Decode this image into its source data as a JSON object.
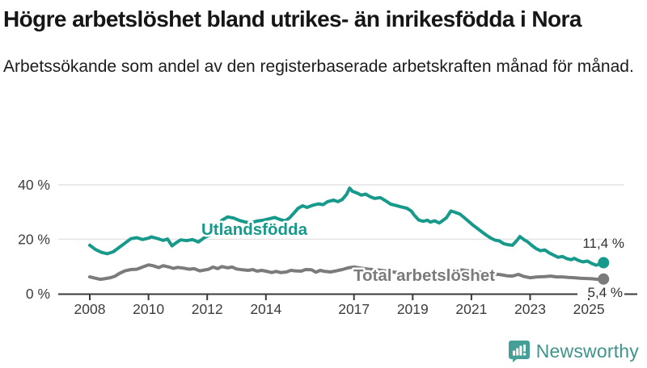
{
  "title": "Högre arbetslöshet bland utrikes- än inrikesfödda i Nora",
  "subtitle": "Arbetssökande som andel av den registerbaserade arbetskraften månad för månad.",
  "footer": {
    "brand": "Newsworthy",
    "brand_color": "#3e948a",
    "logo_icon": "bar-chart-speech-bubble-icon"
  },
  "chart_data": {
    "type": "line",
    "title": "Högre arbetslöshet bland utrikes- än inrikesfödda i Nora",
    "subtitle": "Arbetssökande som andel av den registerbaserade arbetskraften månad för månad.",
    "xlabel": "",
    "ylabel": "",
    "x_range": [
      2008,
      2025.6
    ],
    "ylim": [
      0,
      44
    ],
    "grid": "horizontal-only",
    "grid_color": "#e4e4e4",
    "axis_color": "#3a3a3a",
    "tick_label_color": "#3d3d3d",
    "value_label_color": "#2e2e2e",
    "legend_position": "inline-labels",
    "y_ticks": [
      {
        "value": 0,
        "label": "0 %"
      },
      {
        "value": 20,
        "label": "20 %"
      },
      {
        "value": 40,
        "label": "40 %"
      }
    ],
    "x_ticks": [
      {
        "value": 2008,
        "label": "2008"
      },
      {
        "value": 2010,
        "label": "2010"
      },
      {
        "value": 2012,
        "label": "2012"
      },
      {
        "value": 2014,
        "label": "2014"
      },
      {
        "value": 2017,
        "label": "2017"
      },
      {
        "value": 2019,
        "label": "2019"
      },
      {
        "value": 2021,
        "label": "2021"
      },
      {
        "value": 2023,
        "label": "2023"
      },
      {
        "value": 2025,
        "label": "2025"
      }
    ],
    "series": [
      {
        "name": "Utlandsfödda",
        "slug": "utlandsfodda",
        "color": "#17998b",
        "end_label": "11,4 %",
        "end_value": 11.4,
        "points": [
          [
            2008.0,
            17.8
          ],
          [
            2008.2,
            16.2
          ],
          [
            2008.4,
            15.2
          ],
          [
            2008.6,
            14.7
          ],
          [
            2008.8,
            15.4
          ],
          [
            2009.0,
            17.0
          ],
          [
            2009.2,
            18.6
          ],
          [
            2009.4,
            20.2
          ],
          [
            2009.6,
            20.6
          ],
          [
            2009.8,
            19.9
          ],
          [
            2010.0,
            20.4
          ],
          [
            2010.1,
            20.9
          ],
          [
            2010.3,
            20.3
          ],
          [
            2010.5,
            19.6
          ],
          [
            2010.65,
            20.1
          ],
          [
            2010.8,
            17.6
          ],
          [
            2010.95,
            18.8
          ],
          [
            2011.1,
            19.8
          ],
          [
            2011.3,
            19.5
          ],
          [
            2011.5,
            19.9
          ],
          [
            2011.7,
            19.0
          ],
          [
            2011.9,
            20.6
          ],
          [
            2012.1,
            21.6
          ],
          [
            2012.3,
            24.5
          ],
          [
            2012.5,
            27.0
          ],
          [
            2012.7,
            28.2
          ],
          [
            2012.9,
            27.8
          ],
          [
            2013.1,
            26.9
          ],
          [
            2013.3,
            26.3
          ],
          [
            2013.5,
            26.1
          ],
          [
            2013.7,
            26.7
          ],
          [
            2013.9,
            27.0
          ],
          [
            2014.1,
            27.5
          ],
          [
            2014.3,
            28.0
          ],
          [
            2014.5,
            27.2
          ],
          [
            2014.65,
            26.8
          ],
          [
            2014.8,
            27.8
          ],
          [
            2014.95,
            29.6
          ],
          [
            2015.1,
            31.4
          ],
          [
            2015.25,
            32.3
          ],
          [
            2015.4,
            31.7
          ],
          [
            2015.6,
            32.5
          ],
          [
            2015.8,
            33.0
          ],
          [
            2015.95,
            32.7
          ],
          [
            2016.1,
            33.8
          ],
          [
            2016.3,
            34.4
          ],
          [
            2016.45,
            33.8
          ],
          [
            2016.6,
            34.6
          ],
          [
            2016.75,
            36.5
          ],
          [
            2016.85,
            38.8
          ],
          [
            2016.95,
            37.6
          ],
          [
            2017.1,
            37.0
          ],
          [
            2017.25,
            36.2
          ],
          [
            2017.4,
            36.6
          ],
          [
            2017.55,
            35.6
          ],
          [
            2017.7,
            35.0
          ],
          [
            2017.9,
            35.3
          ],
          [
            2018.1,
            34.0
          ],
          [
            2018.25,
            32.9
          ],
          [
            2018.4,
            32.5
          ],
          [
            2018.6,
            31.9
          ],
          [
            2018.8,
            31.4
          ],
          [
            2018.95,
            30.4
          ],
          [
            2019.05,
            28.9
          ],
          [
            2019.2,
            27.1
          ],
          [
            2019.35,
            26.6
          ],
          [
            2019.5,
            27.0
          ],
          [
            2019.6,
            26.3
          ],
          [
            2019.75,
            26.8
          ],
          [
            2019.9,
            26.0
          ],
          [
            2020.0,
            26.7
          ],
          [
            2020.15,
            27.9
          ],
          [
            2020.3,
            30.4
          ],
          [
            2020.45,
            29.9
          ],
          [
            2020.6,
            29.3
          ],
          [
            2020.75,
            28.0
          ],
          [
            2020.9,
            26.6
          ],
          [
            2021.05,
            25.2
          ],
          [
            2021.2,
            24.0
          ],
          [
            2021.35,
            22.8
          ],
          [
            2021.5,
            21.6
          ],
          [
            2021.65,
            20.5
          ],
          [
            2021.8,
            19.7
          ],
          [
            2021.95,
            19.4
          ],
          [
            2022.1,
            18.4
          ],
          [
            2022.25,
            18.0
          ],
          [
            2022.4,
            17.8
          ],
          [
            2022.55,
            19.6
          ],
          [
            2022.65,
            21.0
          ],
          [
            2022.8,
            19.8
          ],
          [
            2022.9,
            19.2
          ],
          [
            2023.05,
            17.8
          ],
          [
            2023.2,
            16.6
          ],
          [
            2023.35,
            15.8
          ],
          [
            2023.5,
            16.1
          ],
          [
            2023.65,
            15.0
          ],
          [
            2023.8,
            14.2
          ],
          [
            2023.95,
            13.4
          ],
          [
            2024.1,
            13.7
          ],
          [
            2024.25,
            12.9
          ],
          [
            2024.4,
            12.5
          ],
          [
            2024.5,
            13.0
          ],
          [
            2024.65,
            12.2
          ],
          [
            2024.8,
            11.7
          ],
          [
            2024.95,
            12.0
          ],
          [
            2025.1,
            11.1
          ],
          [
            2025.25,
            10.5
          ],
          [
            2025.4,
            11.0
          ],
          [
            2025.5,
            11.4
          ]
        ]
      },
      {
        "name": "Total arbetslöshet",
        "slug": "total-arbetsloshet",
        "color": "#7b7b7b",
        "end_label": "5,4 %",
        "end_value": 5.4,
        "points": [
          [
            2008.0,
            6.2
          ],
          [
            2008.2,
            5.7
          ],
          [
            2008.35,
            5.3
          ],
          [
            2008.5,
            5.5
          ],
          [
            2008.7,
            5.9
          ],
          [
            2008.85,
            6.4
          ],
          [
            2009.0,
            7.4
          ],
          [
            2009.2,
            8.4
          ],
          [
            2009.4,
            8.9
          ],
          [
            2009.6,
            9.0
          ],
          [
            2009.8,
            9.8
          ],
          [
            2010.0,
            10.6
          ],
          [
            2010.15,
            10.3
          ],
          [
            2010.35,
            9.6
          ],
          [
            2010.5,
            10.3
          ],
          [
            2010.7,
            9.8
          ],
          [
            2010.85,
            9.3
          ],
          [
            2011.0,
            9.7
          ],
          [
            2011.2,
            9.4
          ],
          [
            2011.4,
            9.0
          ],
          [
            2011.55,
            9.2
          ],
          [
            2011.75,
            8.4
          ],
          [
            2011.9,
            8.7
          ],
          [
            2012.05,
            9.0
          ],
          [
            2012.2,
            9.8
          ],
          [
            2012.35,
            9.2
          ],
          [
            2012.5,
            10.0
          ],
          [
            2012.7,
            9.5
          ],
          [
            2012.85,
            9.8
          ],
          [
            2013.0,
            9.1
          ],
          [
            2013.2,
            8.8
          ],
          [
            2013.4,
            8.6
          ],
          [
            2013.55,
            8.9
          ],
          [
            2013.7,
            8.3
          ],
          [
            2013.85,
            8.6
          ],
          [
            2014.0,
            8.3
          ],
          [
            2014.2,
            7.8
          ],
          [
            2014.35,
            8.2
          ],
          [
            2014.5,
            7.8
          ],
          [
            2014.7,
            8.0
          ],
          [
            2014.85,
            8.6
          ],
          [
            2015.0,
            8.4
          ],
          [
            2015.2,
            8.3
          ],
          [
            2015.35,
            8.9
          ],
          [
            2015.55,
            8.8
          ],
          [
            2015.7,
            7.9
          ],
          [
            2015.85,
            8.6
          ],
          [
            2016.0,
            8.2
          ],
          [
            2016.2,
            8.0
          ],
          [
            2016.4,
            8.4
          ],
          [
            2016.6,
            8.9
          ],
          [
            2016.8,
            9.5
          ],
          [
            2017.0,
            9.8
          ],
          [
            2017.25,
            9.4
          ],
          [
            2017.5,
            9.0
          ],
          [
            2017.75,
            8.8
          ],
          [
            2018.0,
            8.5
          ],
          [
            2018.25,
            8.1
          ],
          [
            2018.5,
            7.8
          ],
          [
            2018.75,
            7.5
          ],
          [
            2019.0,
            7.3
          ],
          [
            2019.25,
            7.1
          ],
          [
            2019.5,
            7.0
          ],
          [
            2019.75,
            7.2
          ],
          [
            2020.0,
            7.6
          ],
          [
            2020.25,
            8.5
          ],
          [
            2020.45,
            8.9
          ],
          [
            2020.7,
            8.7
          ],
          [
            2020.9,
            8.4
          ],
          [
            2021.1,
            8.1
          ],
          [
            2021.3,
            7.9
          ],
          [
            2021.5,
            7.6
          ],
          [
            2021.75,
            7.3
          ],
          [
            2022.0,
            7.0
          ],
          [
            2022.2,
            6.6
          ],
          [
            2022.4,
            6.5
          ],
          [
            2022.6,
            7.1
          ],
          [
            2022.8,
            6.3
          ],
          [
            2023.0,
            5.9
          ],
          [
            2023.25,
            6.2
          ],
          [
            2023.5,
            6.3
          ],
          [
            2023.7,
            6.5
          ],
          [
            2023.9,
            6.2
          ],
          [
            2024.1,
            6.2
          ],
          [
            2024.3,
            6.0
          ],
          [
            2024.5,
            5.9
          ],
          [
            2024.7,
            5.7
          ],
          [
            2024.9,
            5.6
          ],
          [
            2025.1,
            5.5
          ],
          [
            2025.3,
            5.3
          ],
          [
            2025.5,
            5.4
          ]
        ]
      }
    ]
  }
}
